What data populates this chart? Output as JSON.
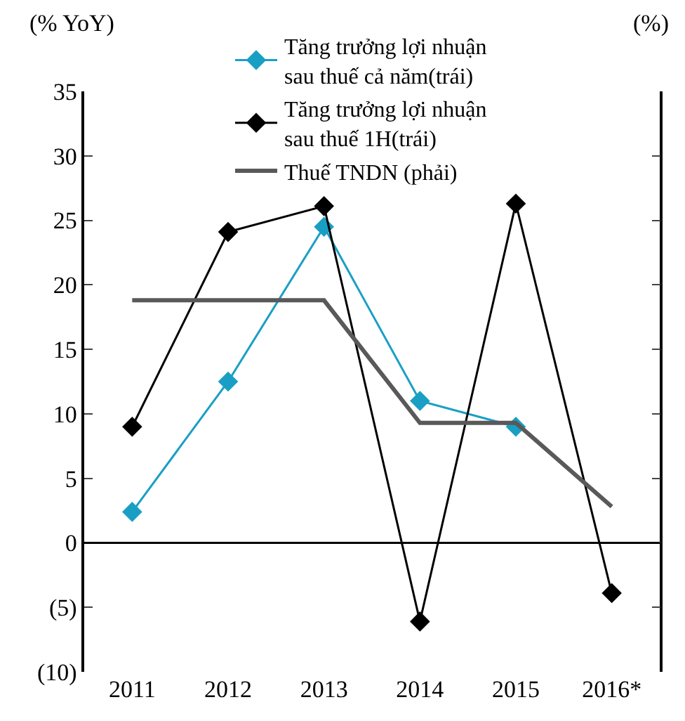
{
  "chart_data": {
    "type": "line",
    "ylabel": "(% YoY)",
    "y2label": "(%)",
    "categories": [
      "2011",
      "2012",
      "2013",
      "2014",
      "2015",
      "2016*"
    ],
    "series": [
      {
        "name": "Tăng trưởng lợi nhuận sau thuế cả năm(trái)",
        "color": "#1a9fc4",
        "marker": "diamond",
        "values": [
          2.4,
          12.5,
          24.5,
          11,
          9,
          null
        ]
      },
      {
        "name": "Tăng trưởng lợi nhuận sau thuế 1H(trái)",
        "color": "#000000",
        "marker": "diamond",
        "values": [
          9,
          24.1,
          26.1,
          -6.1,
          26.3,
          -3.9
        ]
      },
      {
        "name": "Thuế TNDN (phải)",
        "color": "#595959",
        "marker": "none",
        "values": [
          18.8,
          18.8,
          18.8,
          9.3,
          9.3,
          2.8
        ]
      }
    ],
    "ref_lines": [
      {
        "axis": "y",
        "value": 0,
        "color": "#000000"
      }
    ],
    "ylim": [
      -10,
      35
    ],
    "yticks": [
      {
        "value": -10,
        "label": "(10)"
      },
      {
        "value": -5,
        "label": "(5)"
      },
      0,
      5,
      10,
      15,
      20,
      25,
      30,
      35
    ],
    "legend": "top"
  }
}
